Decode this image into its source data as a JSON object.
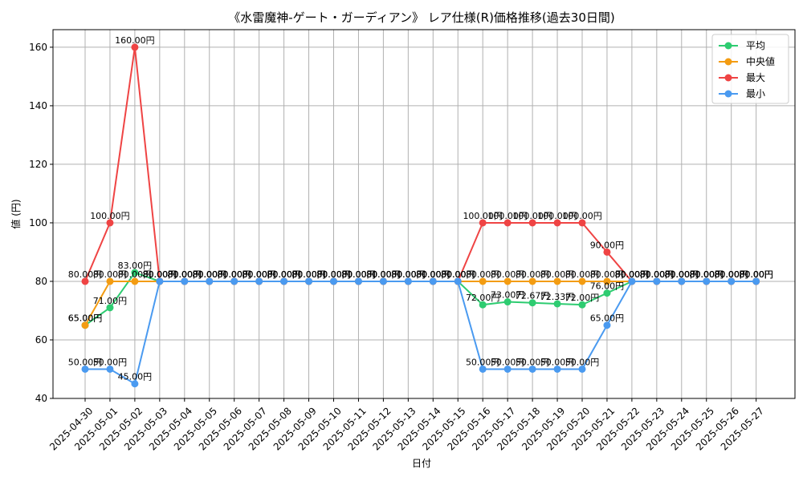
{
  "chart_data": {
    "type": "line",
    "title": "《水雷魔神-ゲート・ガーディアン》 レア仕様(R)価格推移(過去30日間)",
    "xlabel": "日付",
    "ylabel": "値 (円)",
    "ylim": [
      40,
      166
    ],
    "yticks": [
      40,
      60,
      80,
      100,
      120,
      140,
      160
    ],
    "grid": true,
    "legend_position": "top-right",
    "value_suffix": "円",
    "categories": [
      "2025-04-30",
      "2025-05-01",
      "2025-05-02",
      "2025-05-03",
      "2025-05-04",
      "2025-05-05",
      "2025-05-06",
      "2025-05-07",
      "2025-05-08",
      "2025-05-09",
      "2025-05-10",
      "2025-05-11",
      "2025-05-12",
      "2025-05-13",
      "2025-05-14",
      "2025-05-15",
      "2025-05-16",
      "2025-05-17",
      "2025-05-18",
      "2025-05-19",
      "2025-05-20",
      "2025-05-21",
      "2025-05-22",
      "2025-05-23",
      "2025-05-24",
      "2025-05-25",
      "2025-05-26",
      "2025-05-27"
    ],
    "series": [
      {
        "name": "平均",
        "color": "#2ecc71",
        "values": [
          65,
          71,
          83,
          80,
          80,
          80,
          80,
          80,
          80,
          80,
          80,
          80,
          80,
          80,
          80,
          80,
          72,
          73,
          72.67,
          72.33,
          72,
          76,
          80,
          80,
          80,
          80,
          80,
          80
        ]
      },
      {
        "name": "中央値",
        "color": "#f39c12",
        "values": [
          65,
          80,
          80,
          80,
          80,
          80,
          80,
          80,
          80,
          80,
          80,
          80,
          80,
          80,
          80,
          80,
          80,
          80,
          80,
          80,
          80,
          80,
          80,
          80,
          80,
          80,
          80,
          80
        ]
      },
      {
        "name": "最大",
        "color": "#ef4444",
        "values": [
          80,
          100,
          160,
          80,
          80,
          80,
          80,
          80,
          80,
          80,
          80,
          80,
          80,
          80,
          80,
          80,
          100,
          100,
          100,
          100,
          100,
          90,
          80,
          80,
          80,
          80,
          80,
          80
        ]
      },
      {
        "name": "最小",
        "color": "#4a9af0",
        "values": [
          50,
          50,
          45,
          80,
          80,
          80,
          80,
          80,
          80,
          80,
          80,
          80,
          80,
          80,
          80,
          80,
          50,
          50,
          50,
          50,
          50,
          65,
          80,
          80,
          80,
          80,
          80,
          80
        ]
      }
    ]
  }
}
